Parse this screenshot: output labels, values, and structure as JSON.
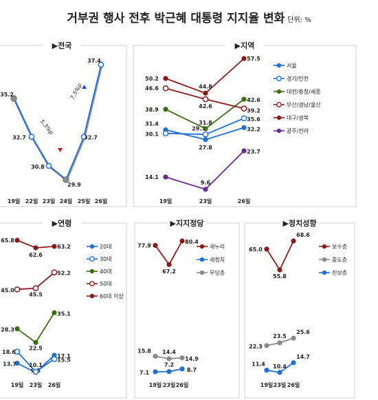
{
  "title": "거부권 행사 전후 박근혜 대통령 지지율 변화",
  "unit": "단위: %",
  "colors": {
    "blue": "#1f6fd6",
    "darkred": "#8b1a1a",
    "green": "#3c6e14",
    "purple": "#6a2c91",
    "gray": "#8a8a8a"
  },
  "chart_data": [
    {
      "id": "national",
      "type": "line",
      "title": "▶전국",
      "categories": [
        "19일",
        "22일",
        "23일",
        "24일",
        "25일",
        "26일"
      ],
      "series": [
        {
          "values": [
            35.2,
            32.7,
            30.8,
            29.9,
            32.7,
            37.4
          ]
        }
      ],
      "annotations": [
        "5.3%p▼",
        "7.5%p▲"
      ]
    },
    {
      "id": "region",
      "type": "line",
      "title": "▶지역",
      "categories": [
        "19일",
        "23일",
        "26일"
      ],
      "legend_position": "right",
      "series": [
        {
          "name": "서울",
          "values": [
            31.4,
            27.8,
            32.2
          ]
        },
        {
          "name": "경기/인천",
          "values": [
            30.1,
            29.7,
            35.6
          ]
        },
        {
          "name": "대전/충청/세종",
          "values": [
            38.9,
            31.8,
            42.6
          ]
        },
        {
          "name": "부산/경남/울산",
          "values": [
            46.6,
            42.6,
            39.2
          ]
        },
        {
          "name": "대구/경북",
          "values": [
            50.2,
            44.8,
            57.5
          ]
        },
        {
          "name": "광주/전라",
          "values": [
            14.1,
            9.6,
            23.7
          ]
        }
      ]
    },
    {
      "id": "age",
      "type": "line",
      "title": "▶연령",
      "categories": [
        "19일",
        "23일",
        "26일"
      ],
      "legend_position": "right",
      "series": [
        {
          "name": "20대",
          "values": [
            13.7,
            9.8,
            17.1
          ]
        },
        {
          "name": "30대",
          "values": [
            18.6,
            10.1,
            15.5
          ]
        },
        {
          "name": "40대",
          "values": [
            28.3,
            22.5,
            35.1
          ]
        },
        {
          "name": "50대",
          "values": [
            45.0,
            45.5,
            52.2
          ]
        },
        {
          "name": "60대 이상",
          "values": [
            65.8,
            62.6,
            63.2
          ]
        }
      ]
    },
    {
      "id": "party",
      "type": "line",
      "title": "▶지지정당",
      "categories": [
        "19일",
        "23일",
        "26일"
      ],
      "legend_position": "right",
      "series": [
        {
          "name": "새누리",
          "values": [
            77.9,
            67.2,
            80.4
          ]
        },
        {
          "name": "새정치",
          "values": [
            7.1,
            7.2,
            8.7
          ]
        },
        {
          "name": "무당층",
          "values": [
            15.8,
            14.4,
            14.9
          ]
        }
      ]
    },
    {
      "id": "ideology",
      "type": "line",
      "title": "▶정치성향",
      "categories": [
        "19일",
        "23일",
        "26일"
      ],
      "legend_position": "right",
      "series": [
        {
          "name": "보수층",
          "values": [
            65.0,
            55.8,
            68.6
          ]
        },
        {
          "name": "중도층",
          "values": [
            22.3,
            23.5,
            25.6
          ]
        },
        {
          "name": "진보층",
          "values": [
            11.4,
            10.4,
            14.7
          ]
        }
      ]
    }
  ]
}
